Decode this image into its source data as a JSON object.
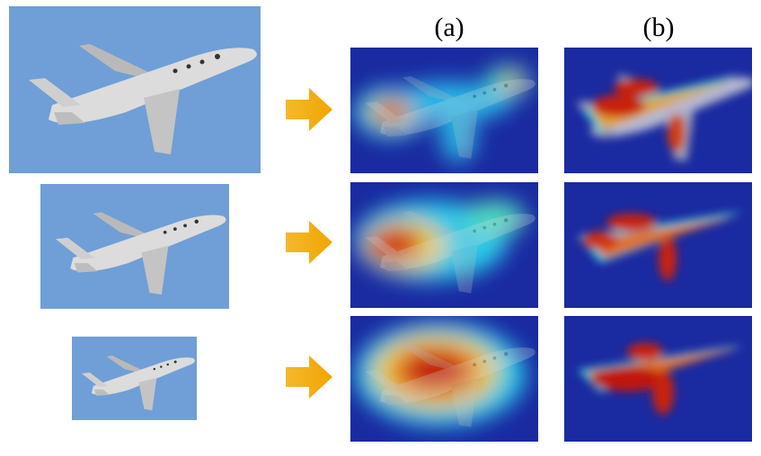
{
  "columns": [
    "(a)",
    "(b)"
  ]
}
